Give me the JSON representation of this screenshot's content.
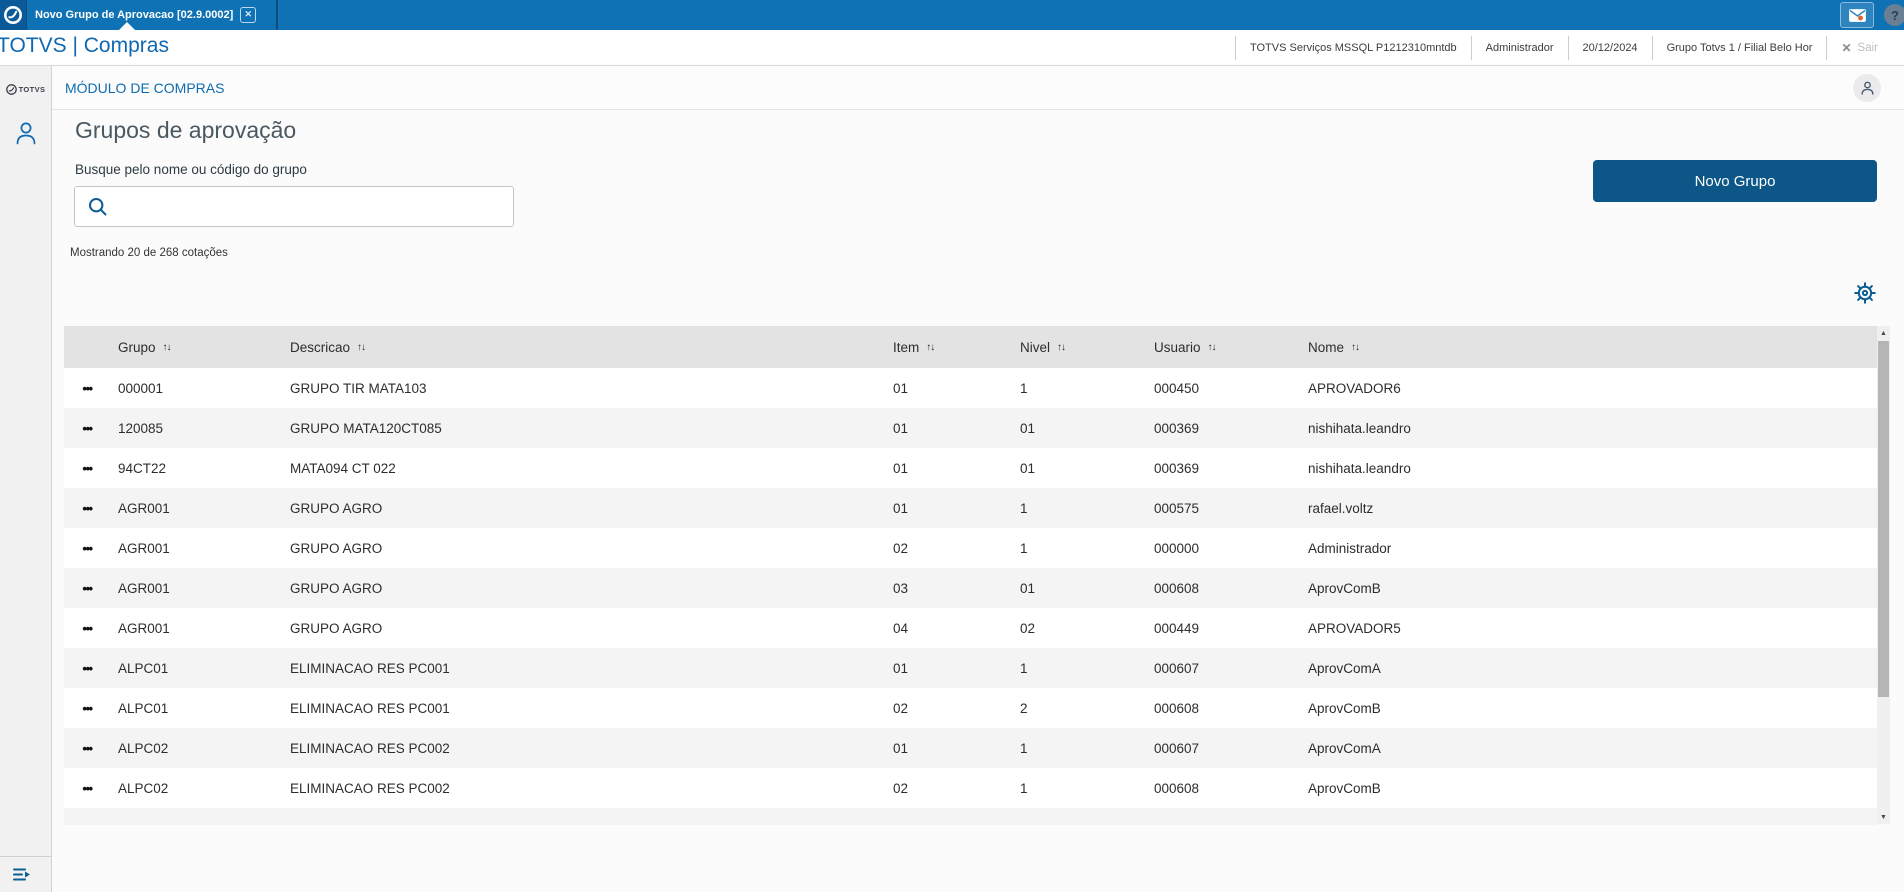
{
  "colors": {
    "topbar_blue": "#0e72b4",
    "logo_box_blue": "#0a5a9a",
    "brand_blue": "#0e68b2",
    "button_blue": "#0c5688",
    "icon_blue": "#0c5d94",
    "title_gray": "#4a5961",
    "table_header_bg": "#e3e3e3",
    "row_alt_bg": "#f4f4f4",
    "mail_badge_orange": "#e0622a"
  },
  "topbar": {
    "tab_label": "Novo Grupo de Aprovacao [02.9.0002]",
    "tab_close_icon": "✕",
    "help_glyph": "?"
  },
  "header": {
    "brand": "TOTVS | Compras",
    "info_segments": [
      "TOTVS Serviços MSSQL P1212310mntdb",
      "Administrador",
      "20/12/2024",
      "Grupo Totvs 1 / Filial Belo Hor"
    ],
    "logout_icon": "✕",
    "logout_label": "Sair"
  },
  "sidebar": {
    "logo_text": "TOTVS"
  },
  "module_bar": {
    "title": "MÓDULO DE COMPRAS"
  },
  "main": {
    "page_title": "Grupos de aprovação",
    "search_label": "Busque pelo nome ou código do grupo",
    "search_value": "",
    "search_placeholder": "",
    "results_summary": "Mostrando 20 de 268 cotações",
    "new_group_button": "Novo Grupo"
  },
  "scrollbar": {
    "up_glyph": "▲",
    "down_glyph": "▼"
  },
  "table": {
    "columns": [
      "Grupo",
      "Descricao",
      "Item",
      "Nivel",
      "Usuario",
      "Nome"
    ],
    "sort_icon": "↑↓",
    "row_actions_icon": "•••",
    "rows": [
      {
        "grupo": "000001",
        "descricao": "GRUPO TIR MATA103",
        "item": "01",
        "nivel": "1",
        "usuario": "000450",
        "nome": "APROVADOR6"
      },
      {
        "grupo": "120085",
        "descricao": "GRUPO MATA120CT085",
        "item": "01",
        "nivel": "01",
        "usuario": "000369",
        "nome": "nishihata.leandro"
      },
      {
        "grupo": "94CT22",
        "descricao": "MATA094 CT 022",
        "item": "01",
        "nivel": "01",
        "usuario": "000369",
        "nome": "nishihata.leandro"
      },
      {
        "grupo": "AGR001",
        "descricao": "GRUPO AGRO",
        "item": "01",
        "nivel": "1",
        "usuario": "000575",
        "nome": "rafael.voltz"
      },
      {
        "grupo": "AGR001",
        "descricao": "GRUPO AGRO",
        "item": "02",
        "nivel": "1",
        "usuario": "000000",
        "nome": "Administrador"
      },
      {
        "grupo": "AGR001",
        "descricao": "GRUPO AGRO",
        "item": "03",
        "nivel": "01",
        "usuario": "000608",
        "nome": "AprovComB"
      },
      {
        "grupo": "AGR001",
        "descricao": "GRUPO AGRO",
        "item": "04",
        "nivel": "02",
        "usuario": "000449",
        "nome": "APROVADOR5"
      },
      {
        "grupo": "ALPC01",
        "descricao": "ELIMINACAO RES PC001",
        "item": "01",
        "nivel": "1",
        "usuario": "000607",
        "nome": "AprovComA"
      },
      {
        "grupo": "ALPC01",
        "descricao": "ELIMINACAO RES PC001",
        "item": "02",
        "nivel": "2",
        "usuario": "000608",
        "nome": "AprovComB"
      },
      {
        "grupo": "ALPC02",
        "descricao": "ELIMINACAO RES PC002",
        "item": "01",
        "nivel": "1",
        "usuario": "000607",
        "nome": "AprovComA"
      },
      {
        "grupo": "ALPC02",
        "descricao": "ELIMINACAO RES PC002",
        "item": "02",
        "nivel": "1",
        "usuario": "000608",
        "nome": "AprovComB"
      }
    ]
  }
}
